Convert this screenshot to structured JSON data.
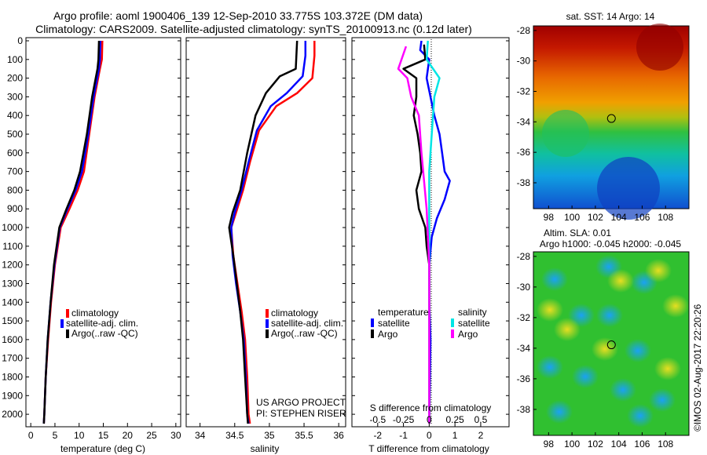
{
  "header": {
    "line1": "Argo profile: aoml 1900406_139 12-Sep-2010 33.775S 103.372E (DM data)",
    "line2": "Climatology: CARS2009. Satellite-adjusted climatology: synTS_20100913.nc (0.12d later)"
  },
  "colors": {
    "climatology": "#ff0000",
    "satellite": "#0000ff",
    "argo": "#000000",
    "sat_salinity": "#00e5e5",
    "argo_salinity": "#ff00ff"
  },
  "depth_axis": {
    "min": 0,
    "max": 2050,
    "ticks": [
      0,
      100,
      200,
      300,
      400,
      500,
      600,
      700,
      800,
      900,
      1000,
      1100,
      1200,
      1300,
      1400,
      1500,
      1600,
      1700,
      1800,
      1900,
      2000
    ]
  },
  "chart_data": [
    {
      "type": "line",
      "panel": "temperature",
      "xlabel": "temperature (deg C)",
      "xlim": [
        -1,
        31
      ],
      "xticks": [
        0,
        5,
        10,
        15,
        20,
        25,
        30
      ],
      "ylim": [
        2050,
        0
      ],
      "legend": [
        {
          "label": "climatology",
          "color": "#ff0000"
        },
        {
          "label": "satellite-adj. clim.",
          "color": "#0000ff"
        },
        {
          "label": "Argo(..raw -QC)",
          "color": "#000000"
        }
      ],
      "series": [
        {
          "name": "climatology",
          "color": "#ff0000",
          "points": [
            [
              14.8,
              0
            ],
            [
              14.7,
              100
            ],
            [
              14.3,
              150
            ],
            [
              13.2,
              300
            ],
            [
              12.1,
              500
            ],
            [
              11,
              700
            ],
            [
              9.7,
              800
            ],
            [
              8,
              900
            ],
            [
              6.2,
              1000
            ],
            [
              5,
              1200
            ],
            [
              4.2,
              1400
            ],
            [
              3.6,
              1600
            ],
            [
              3.1,
              1800
            ],
            [
              2.8,
              2000
            ],
            [
              2.7,
              2050
            ]
          ]
        },
        {
          "name": "satellite-adj. clim.",
          "color": "#0000ff",
          "points": [
            [
              14.4,
              0
            ],
            [
              14.3,
              100
            ],
            [
              14.1,
              150
            ],
            [
              13,
              300
            ],
            [
              11.9,
              500
            ],
            [
              10.6,
              700
            ],
            [
              9.3,
              800
            ],
            [
              7.6,
              900
            ],
            [
              6,
              1000
            ],
            [
              4.9,
              1200
            ],
            [
              4.1,
              1400
            ],
            [
              3.5,
              1600
            ],
            [
              3.1,
              1800
            ],
            [
              2.8,
              2000
            ],
            [
              2.7,
              2050
            ]
          ]
        },
        {
          "name": "Argo(..raw -QC)",
          "color": "#000000",
          "points": [
            [
              14.1,
              0
            ],
            [
              14,
              100
            ],
            [
              13.8,
              150
            ],
            [
              12.7,
              300
            ],
            [
              11.6,
              500
            ],
            [
              10.2,
              700
            ],
            [
              9,
              800
            ],
            [
              7.4,
              900
            ],
            [
              5.9,
              1000
            ],
            [
              4.8,
              1200
            ],
            [
              4.1,
              1400
            ],
            [
              3.5,
              1600
            ],
            [
              3.1,
              1800
            ],
            [
              2.8,
              2000
            ],
            [
              2.7,
              2050
            ]
          ]
        }
      ]
    },
    {
      "type": "line",
      "panel": "salinity",
      "xlabel": "salinity",
      "xlim": [
        33.8,
        36.1
      ],
      "xticks": [
        34,
        34.5,
        35,
        35.5,
        36
      ],
      "ylim": [
        2050,
        0
      ],
      "legend": [
        {
          "label": "climatology",
          "color": "#ff0000"
        },
        {
          "label": "satellite-adj. clim.",
          "color": "#0000ff"
        },
        {
          "label": "Argo(..raw -QC)",
          "color": "#000000"
        }
      ],
      "annotation": [
        "US ARGO PROJECT",
        "PI: STEPHEN RISER"
      ],
      "series": [
        {
          "name": "climatology",
          "color": "#ff0000",
          "points": [
            [
              35.65,
              0
            ],
            [
              35.65,
              80
            ],
            [
              35.62,
              200
            ],
            [
              35.4,
              280
            ],
            [
              35.1,
              350
            ],
            [
              34.85,
              480
            ],
            [
              34.72,
              650
            ],
            [
              34.62,
              800
            ],
            [
              34.52,
              920
            ],
            [
              34.45,
              1000
            ],
            [
              34.48,
              1150
            ],
            [
              34.54,
              1300
            ],
            [
              34.6,
              1450
            ],
            [
              34.65,
              1600
            ],
            [
              34.68,
              1800
            ],
            [
              34.7,
              2000
            ],
            [
              34.72,
              2050
            ]
          ]
        },
        {
          "name": "satellite-adj. clim.",
          "color": "#0000ff",
          "points": [
            [
              35.52,
              0
            ],
            [
              35.52,
              80
            ],
            [
              35.48,
              190
            ],
            [
              35.25,
              280
            ],
            [
              35.02,
              350
            ],
            [
              34.82,
              480
            ],
            [
              34.7,
              650
            ],
            [
              34.6,
              800
            ],
            [
              34.5,
              920
            ],
            [
              34.45,
              1000
            ],
            [
              34.47,
              1150
            ],
            [
              34.52,
              1300
            ],
            [
              34.58,
              1450
            ],
            [
              34.63,
              1600
            ],
            [
              34.66,
              1800
            ],
            [
              34.68,
              2000
            ],
            [
              34.7,
              2050
            ]
          ]
        },
        {
          "name": "Argo(..raw -QC)",
          "color": "#000000",
          "points": [
            [
              35.4,
              0
            ],
            [
              35.38,
              150
            ],
            [
              35.15,
              190
            ],
            [
              34.95,
              280
            ],
            [
              34.8,
              400
            ],
            [
              34.68,
              600
            ],
            [
              34.58,
              800
            ],
            [
              34.47,
              920
            ],
            [
              34.42,
              1000
            ],
            [
              34.48,
              1150
            ],
            [
              34.53,
              1300
            ],
            [
              34.58,
              1450
            ],
            [
              34.62,
              1600
            ],
            [
              34.65,
              1800
            ],
            [
              34.68,
              2000
            ],
            [
              34.69,
              2050
            ]
          ]
        }
      ]
    },
    {
      "type": "line",
      "panel": "difference",
      "xlabel": "T difference from climatology",
      "xlim": [
        -3,
        3.1
      ],
      "xticks": [
        -2,
        -1,
        0,
        1,
        2
      ],
      "xlabel2": "S difference from climatology",
      "x2ticks": [
        {
          "label": "-0.5",
          "t": -2
        },
        {
          "label": "-0.25",
          "t": -1
        },
        {
          "label": "0",
          "t": 0
        },
        {
          "label": "0.25",
          "t": 1
        },
        {
          "label": "0.5",
          "t": 2
        }
      ],
      "ylim": [
        2050,
        0
      ],
      "legend_temperature": {
        "title": "temperature",
        "items": [
          {
            "label": "satellite",
            "color": "#0000ff"
          },
          {
            "label": "Argo",
            "color": "#000000"
          }
        ]
      },
      "legend_salinity": {
        "title": "salinity",
        "items": [
          {
            "label": "satellite",
            "color": "#00e5e5"
          },
          {
            "label": "Argo",
            "color": "#ff00ff"
          }
        ]
      },
      "series": [
        {
          "name": "temperature satellite",
          "color": "#0000ff",
          "points": [
            [
              -0.3,
              0
            ],
            [
              -0.35,
              50
            ],
            [
              0,
              100
            ],
            [
              -0.1,
              200
            ],
            [
              0.05,
              300
            ],
            [
              0.2,
              400
            ],
            [
              0.4,
              500
            ],
            [
              0.5,
              600
            ],
            [
              0.6,
              700
            ],
            [
              0.8,
              750
            ],
            [
              0.6,
              850
            ],
            [
              0.3,
              950
            ],
            [
              0.1,
              1050
            ],
            [
              0,
              1200
            ],
            [
              0,
              1400
            ],
            [
              0.05,
              1600
            ],
            [
              0,
              2050
            ]
          ]
        },
        {
          "name": "temperature Argo",
          "color": "#000000",
          "points": [
            [
              -0.2,
              20
            ],
            [
              -0.15,
              100
            ],
            [
              -1,
              150
            ],
            [
              -0.5,
              200
            ],
            [
              -0.5,
              300
            ],
            [
              -0.6,
              400
            ],
            [
              -0.45,
              500
            ],
            [
              -0.35,
              600
            ],
            [
              -0.3,
              700
            ],
            [
              -0.5,
              800
            ],
            [
              -0.4,
              900
            ],
            [
              -0.15,
              1000
            ],
            [
              -0.1,
              1100
            ],
            [
              0,
              1200
            ],
            [
              0,
              1400
            ],
            [
              0,
              2050
            ]
          ]
        },
        {
          "name": "salinity satellite",
          "color": "#00e5e5",
          "points": [
            [
              -0.05,
              0
            ],
            [
              -0.1,
              100
            ],
            [
              0.4,
              200
            ],
            [
              0.2,
              300
            ],
            [
              0.1,
              500
            ],
            [
              0,
              700
            ],
            [
              0,
              1000
            ],
            [
              0,
              1500
            ],
            [
              0,
              2050
            ]
          ]
        },
        {
          "name": "salinity Argo",
          "color": "#ff00ff",
          "points": [
            [
              -0.9,
              30
            ],
            [
              -1.2,
              150
            ],
            [
              -0.85,
              200
            ],
            [
              -0.7,
              300
            ],
            [
              -0.4,
              400
            ],
            [
              -0.3,
              600
            ],
            [
              -0.1,
              900
            ],
            [
              0,
              1200
            ],
            [
              0,
              2050
            ]
          ]
        }
      ]
    },
    {
      "type": "heatmap",
      "panel": "sat-sst",
      "title": "sat. SST: 14  Argo: 14",
      "xticks": [
        "98",
        "100",
        "102",
        "104",
        "106",
        "108"
      ],
      "yticks": [
        "-28",
        "-30",
        "-32",
        "-34",
        "-36",
        "-38"
      ],
      "xlim": [
        96.7,
        110
      ],
      "ylim": [
        -39.7,
        -27.7
      ],
      "marker": {
        "lon": 103.37,
        "lat": -33.78
      }
    },
    {
      "type": "heatmap",
      "panel": "altimetry-sla",
      "title": "Altim. SLA: 0.01",
      "subtitle": "Argo h1000: -0.045 h2000: -0.045",
      "xticks": [
        "98",
        "100",
        "102",
        "104",
        "106",
        "108"
      ],
      "yticks": [
        "-28",
        "-30",
        "-32",
        "-34",
        "-36",
        "-38"
      ],
      "xlim": [
        96.7,
        110
      ],
      "ylim": [
        -39.7,
        -27.7
      ],
      "marker": {
        "lon": 103.37,
        "lat": -33.78
      }
    }
  ],
  "footer": {
    "credit": "©IMOS 02-Aug-2017 22:20:26"
  }
}
